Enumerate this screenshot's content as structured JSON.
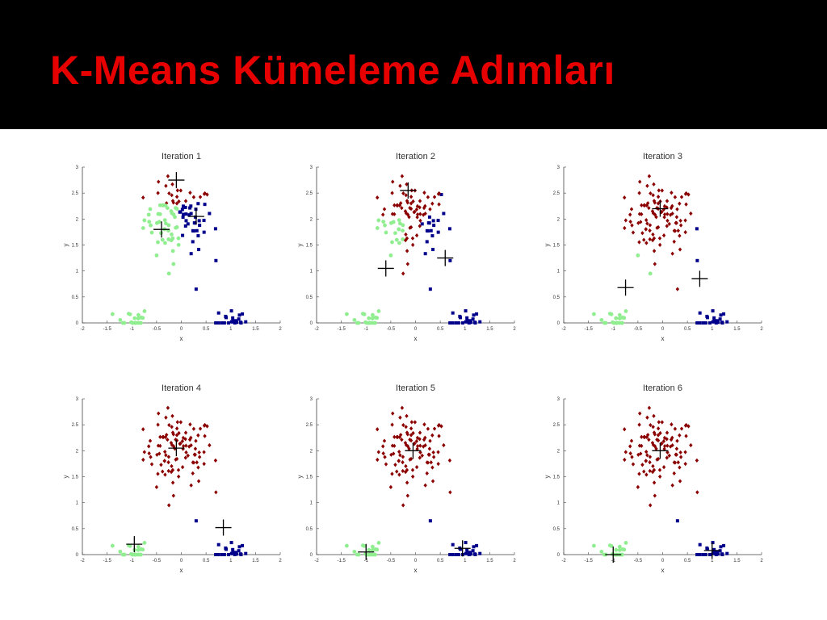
{
  "slide": {
    "title": "K-Means Kümeleme Adımları"
  },
  "colors": {
    "background_header": "#000000",
    "title": "#e60000",
    "cluster_red": "#8b0000",
    "cluster_blue": "#00008b",
    "cluster_green": "#90ee90",
    "centroid": "#000000"
  },
  "chart_data": [
    {
      "type": "scatter",
      "title": "Iteration 1",
      "xlabel": "x",
      "ylabel": "y",
      "xlim": [
        -2,
        2
      ],
      "ylim": [
        0,
        3
      ],
      "xticks": [
        "-2",
        "-1.5",
        "-1",
        "-0.5",
        "0",
        "0.5",
        "1",
        "1.5",
        "2"
      ],
      "yticks": [
        "0",
        "0.5",
        "1",
        "1.5",
        "2",
        "2.5",
        "3"
      ],
      "centroids": [
        {
          "x": -0.1,
          "y": 2.75
        },
        {
          "x": 0.3,
          "y": 2.05
        },
        {
          "x": -0.4,
          "y": 1.8
        }
      ]
    },
    {
      "type": "scatter",
      "title": "Iteration 2",
      "xlabel": "x",
      "ylabel": "y",
      "xlim": [
        -2,
        2
      ],
      "ylim": [
        0,
        3
      ],
      "xticks": [
        "-2",
        "-1.5",
        "-1",
        "-0.5",
        "0",
        "0.5",
        "1",
        "1.5",
        "2"
      ],
      "yticks": [
        "0",
        "0.5",
        "1",
        "1.5",
        "2",
        "2.5",
        "3"
      ],
      "centroids": [
        {
          "x": -0.15,
          "y": 2.55
        },
        {
          "x": 0.6,
          "y": 1.25
        },
        {
          "x": -0.6,
          "y": 1.05
        }
      ]
    },
    {
      "type": "scatter",
      "title": "Iteration 3",
      "xlabel": "x",
      "ylabel": "y",
      "xlim": [
        -2,
        2
      ],
      "ylim": [
        0,
        3
      ],
      "xticks": [
        "-2",
        "-1.5",
        "-1",
        "-0.5",
        "0",
        "0.5",
        "1",
        "1.5",
        "2"
      ],
      "yticks": [
        "0",
        "0.5",
        "1",
        "1.5",
        "2",
        "2.5",
        "3"
      ],
      "centroids": [
        {
          "x": -0.05,
          "y": 2.2
        },
        {
          "x": 0.75,
          "y": 0.85
        },
        {
          "x": -0.75,
          "y": 0.68
        }
      ]
    },
    {
      "type": "scatter",
      "title": "Iteration 4",
      "xlabel": "x",
      "ylabel": "y",
      "xlim": [
        -2,
        2
      ],
      "ylim": [
        0,
        3
      ],
      "xticks": [
        "-2",
        "-1.5",
        "-1",
        "-0.5",
        "0",
        "0.5",
        "1",
        "1.5",
        "2"
      ],
      "yticks": [
        "0",
        "0.5",
        "1",
        "1.5",
        "2",
        "2.5",
        "3"
      ],
      "centroids": [
        {
          "x": -0.1,
          "y": 2.05
        },
        {
          "x": 0.85,
          "y": 0.52
        },
        {
          "x": -0.95,
          "y": 0.2
        }
      ]
    },
    {
      "type": "scatter",
      "title": "Iteration 5",
      "xlabel": "x",
      "ylabel": "y",
      "xlim": [
        -2,
        2
      ],
      "ylim": [
        0,
        3
      ],
      "xticks": [
        "-2",
        "-1.5",
        "-1",
        "-0.5",
        "0",
        "0.5",
        "1",
        "1.5",
        "2"
      ],
      "yticks": [
        "0",
        "0.5",
        "1",
        "1.5",
        "2",
        "2.5",
        "3"
      ],
      "centroids": [
        {
          "x": -0.05,
          "y": 2.0
        },
        {
          "x": 0.95,
          "y": 0.12
        },
        {
          "x": -1.0,
          "y": 0.05
        }
      ]
    },
    {
      "type": "scatter",
      "title": "Iteration 6",
      "xlabel": "x",
      "ylabel": "y",
      "xlim": [
        -2,
        2
      ],
      "ylim": [
        0,
        3
      ],
      "xticks": [
        "-2",
        "-1.5",
        "-1",
        "-0.5",
        "0",
        "0.5",
        "1",
        "1.5",
        "2"
      ],
      "yticks": [
        "0",
        "0.5",
        "1",
        "1.5",
        "2",
        "2.5",
        "3"
      ],
      "centroids": [
        {
          "x": -0.05,
          "y": 2.0
        },
        {
          "x": 1.0,
          "y": 0.08
        },
        {
          "x": -1.0,
          "y": 0.0
        }
      ]
    }
  ]
}
